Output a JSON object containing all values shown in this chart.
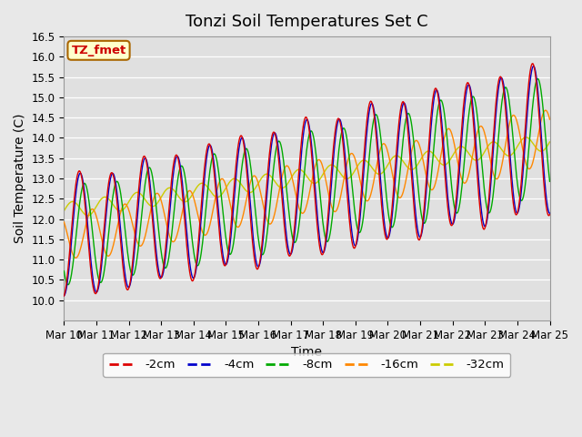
{
  "title": "Tonzi Soil Temperatures Set C",
  "xlabel": "Time",
  "ylabel": "Soil Temperature (C)",
  "ylim": [
    9.5,
    16.5
  ],
  "xlim": [
    0,
    15
  ],
  "xtick_labels": [
    "Mar 10",
    "Mar 11",
    "Mar 12",
    "Mar 13",
    "Mar 14",
    "Mar 15",
    "Mar 16",
    "Mar 17",
    "Mar 18",
    "Mar 19",
    "Mar 20",
    "Mar 21",
    "Mar 22",
    "Mar 23",
    "Mar 24",
    "Mar 25"
  ],
  "ytick_values": [
    10.0,
    10.5,
    11.0,
    11.5,
    12.0,
    12.5,
    13.0,
    13.5,
    14.0,
    14.5,
    15.0,
    15.5,
    16.0,
    16.5
  ],
  "legend_label": "TZ_fmet",
  "series_labels": [
    "-2cm",
    "-4cm",
    "-8cm",
    "-16cm",
    "-32cm"
  ],
  "series_colors": [
    "#dd0000",
    "#0000cc",
    "#00aa00",
    "#ff8800",
    "#cccc00"
  ],
  "background_color": "#e0e0e0",
  "fig_facecolor": "#e8e8e8",
  "title_fontsize": 13,
  "axis_label_fontsize": 10,
  "tick_fontsize": 8.5
}
